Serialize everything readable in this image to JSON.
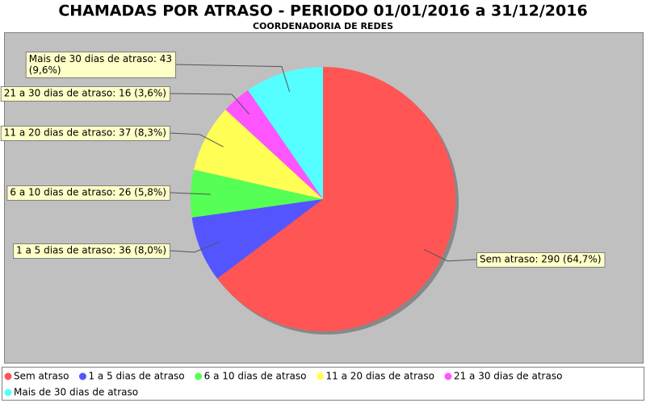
{
  "chart_data": {
    "type": "pie",
    "title": "CHAMADAS POR ATRASO - PERIODO 01/01/2016 a 31/12/2016",
    "subtitle": "COORDENADORIA DE REDES",
    "categories": [
      "Sem atraso",
      "1 a 5 dias de atraso",
      "6 a 10 dias de atraso",
      "11 a 20 dias de atraso",
      "21 a 30 dias de atraso",
      "Mais de 30 dias de atraso"
    ],
    "values": [
      290,
      36,
      26,
      37,
      16,
      43
    ],
    "value_labels": [
      "Sem atraso: 290 (64,7%)",
      "1 a 5 dias de atraso: 36 (8,0%)",
      "6 a 10 dias de atraso: 26 (5,8%)",
      "11 a 20 dias de atraso: 37 (8,3%)",
      "21 a 30 dias de atraso: 16 (3,6%)",
      "Mais de 30 dias de atraso: 43 (9,6%)"
    ],
    "colors": [
      "#ff5555",
      "#5555ff",
      "#55ff55",
      "#ffff55",
      "#ff55ff",
      "#55ffff"
    ],
    "legend": "bottom"
  }
}
